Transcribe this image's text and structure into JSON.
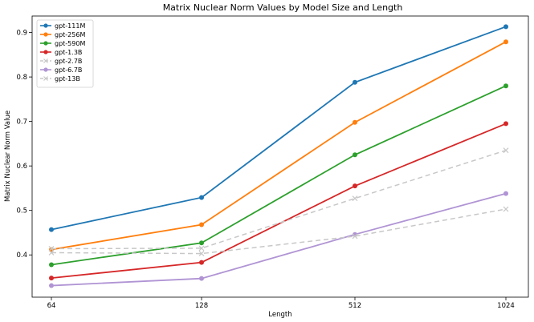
{
  "chart_data": {
    "type": "line",
    "title": "Matrix Nuclear Norm Values by Model Size and Length",
    "xlabel": "Length",
    "ylabel": "Matrix Nuclear Norm Value",
    "categories": [
      "64",
      "128",
      "512",
      "1024"
    ],
    "yticks": [
      "0.4",
      "0.5",
      "0.6",
      "0.7",
      "0.8",
      "0.9"
    ],
    "ylim": [
      0.305,
      0.937
    ],
    "grid": false,
    "legend_position": "top-left",
    "series": [
      {
        "name": "gpt-111M",
        "values": [
          0.457,
          0.529,
          0.788,
          0.913
        ],
        "color": "#1f77b4",
        "marker": "circle",
        "dashed": false
      },
      {
        "name": "gpt-256M",
        "values": [
          0.412,
          0.468,
          0.698,
          0.879
        ],
        "color": "#ff7f0e",
        "marker": "circle",
        "dashed": false
      },
      {
        "name": "gpt-590M",
        "values": [
          0.378,
          0.427,
          0.625,
          0.78
        ],
        "color": "#2ca02c",
        "marker": "circle",
        "dashed": false
      },
      {
        "name": "gpt-1.3B",
        "values": [
          0.348,
          0.383,
          0.555,
          0.695
        ],
        "color": "#d62728",
        "marker": "circle",
        "dashed": false
      },
      {
        "name": "gpt-2.7B",
        "values": [
          0.414,
          0.415,
          0.527,
          0.635
        ],
        "color": "#c8c8c8",
        "marker": "x",
        "dashed": true
      },
      {
        "name": "gpt-6.7B",
        "values": [
          0.331,
          0.347,
          0.446,
          0.538
        ],
        "color": "#b094d4",
        "marker": "circle",
        "dashed": false
      },
      {
        "name": "gpt-13B",
        "values": [
          0.405,
          0.403,
          0.442,
          0.503
        ],
        "color": "#c8c8c8",
        "marker": "x",
        "dashed": true
      }
    ]
  }
}
